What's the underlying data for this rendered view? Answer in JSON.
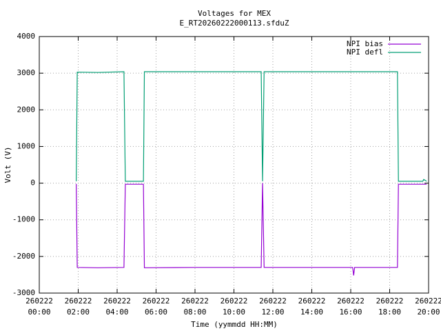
{
  "chart_data": {
    "type": "line",
    "title": [
      "Voltages for MEX",
      "E_RT20260222000113.sfduZ"
    ],
    "x_label": "Time (yymmdd HH:MM)",
    "y_label": "Volt (V)",
    "x": [
      1.9,
      1.95,
      3.0,
      4.35,
      4.42,
      5.35,
      5.4,
      8.0,
      11.4,
      11.47,
      11.55,
      14.0,
      16.1,
      16.15,
      16.2,
      18.4,
      18.45,
      19.7,
      19.75,
      19.9
    ],
    "series": [
      {
        "name": "NPI bias",
        "color": "#9400d3",
        "values": [
          -20,
          -2300,
          -2310,
          -2300,
          -30,
          -30,
          -2310,
          -2300,
          -2300,
          0,
          -2300,
          -2300,
          -2300,
          -2520,
          -2300,
          -2300,
          -30,
          -30,
          -30,
          -30
        ]
      },
      {
        "name": "NPI defl",
        "color": "#009e73",
        "values": [
          50,
          3030,
          3020,
          3040,
          50,
          50,
          3040,
          3040,
          3040,
          50,
          3040,
          3040,
          3040,
          3040,
          3040,
          3040,
          50,
          50,
          100,
          50
        ]
      }
    ],
    "xlim": [
      0,
      20
    ],
    "xticks": [
      {
        "value": 0,
        "label": [
          "260222",
          "00:00"
        ]
      },
      {
        "value": 2,
        "label": [
          "260222",
          "02:00"
        ]
      },
      {
        "value": 4,
        "label": [
          "260222",
          "04:00"
        ]
      },
      {
        "value": 6,
        "label": [
          "260222",
          "06:00"
        ]
      },
      {
        "value": 8,
        "label": [
          "260222",
          "08:00"
        ]
      },
      {
        "value": 10,
        "label": [
          "260222",
          "10:00"
        ]
      },
      {
        "value": 12,
        "label": [
          "260222",
          "12:00"
        ]
      },
      {
        "value": 14,
        "label": [
          "260222",
          "14:00"
        ]
      },
      {
        "value": 16,
        "label": [
          "260222",
          "16:00"
        ]
      },
      {
        "value": 18,
        "label": [
          "260222",
          "18:00"
        ]
      },
      {
        "value": 20,
        "label": [
          "260222",
          "20:00"
        ]
      }
    ],
    "ylim": [
      -3000,
      4000
    ],
    "yticks": [
      -3000,
      -2000,
      -1000,
      0,
      1000,
      2000,
      3000,
      4000
    ],
    "grid": true,
    "legend": "top-right"
  }
}
